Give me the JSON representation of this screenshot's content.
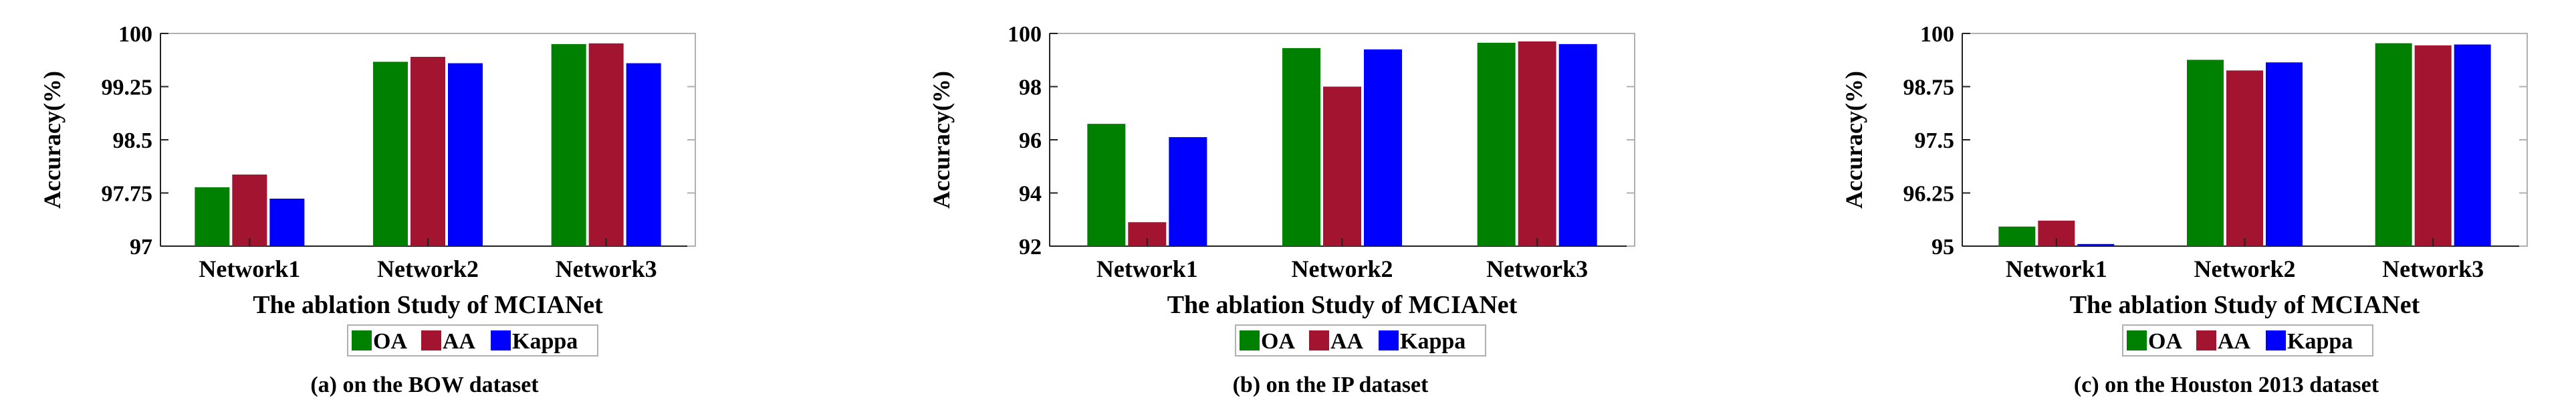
{
  "legend": {
    "entries": [
      {
        "name": "OA",
        "color": "#008000"
      },
      {
        "name": "AA",
        "color": "#A2142F"
      },
      {
        "name": "Kappa",
        "color": "#0000FF"
      }
    ],
    "placement": "bottom-center"
  },
  "chart_data": [
    {
      "type": "bar",
      "title": "",
      "caption": "(a) on the BOW dataset",
      "xlabel": "The ablation Study of MCIANet",
      "ylabel": "Accuracy(%)",
      "categories": [
        "Network1",
        "Network2",
        "Network3"
      ],
      "ylim": [
        97,
        100
      ],
      "yticks": [
        97,
        97.75,
        98.5,
        99.25,
        100
      ],
      "ytick_labels": [
        "97",
        "97.75",
        "98.5",
        "99.25",
        "100"
      ],
      "grid": false,
      "series": [
        {
          "name": "OA",
          "color": "#008000",
          "values": [
            97.83,
            99.6,
            99.85
          ]
        },
        {
          "name": "AA",
          "color": "#A2142F",
          "values": [
            98.01,
            99.67,
            99.86
          ]
        },
        {
          "name": "Kappa",
          "color": "#0000FF",
          "values": [
            97.67,
            99.58,
            99.58
          ]
        }
      ]
    },
    {
      "type": "bar",
      "title": "",
      "caption": "(b) on the IP dataset",
      "xlabel": "The ablation Study of MCIANet",
      "ylabel": "Accuracy(%)",
      "categories": [
        "Network1",
        "Network2",
        "Network3"
      ],
      "ylim": [
        92,
        100
      ],
      "yticks": [
        92,
        94,
        96,
        98,
        100
      ],
      "ytick_labels": [
        "92",
        "94",
        "96",
        "98",
        "100"
      ],
      "grid": false,
      "series": [
        {
          "name": "OA",
          "color": "#008000",
          "values": [
            96.6,
            99.45,
            99.65
          ]
        },
        {
          "name": "AA",
          "color": "#A2142F",
          "values": [
            92.9,
            98.0,
            99.7
          ]
        },
        {
          "name": "Kappa",
          "color": "#0000FF",
          "values": [
            96.1,
            99.4,
            99.6
          ]
        }
      ]
    },
    {
      "type": "bar",
      "title": "",
      "caption": "(c) on the Houston 2013 dataset",
      "xlabel": "The ablation Study of MCIANet",
      "ylabel": "Accuracy(%)",
      "categories": [
        "Network1",
        "Network2",
        "Network3"
      ],
      "ylim": [
        95,
        100
      ],
      "yticks": [
        95,
        96.25,
        97.5,
        98.75,
        100
      ],
      "ytick_labels": [
        "95",
        "96.25",
        "97.5",
        "98.75",
        "100"
      ],
      "grid": false,
      "series": [
        {
          "name": "OA",
          "color": "#008000",
          "values": [
            95.46,
            99.38,
            99.77
          ]
        },
        {
          "name": "AA",
          "color": "#A2142F",
          "values": [
            95.6,
            99.13,
            99.72
          ]
        },
        {
          "name": "Kappa",
          "color": "#0000FF",
          "values": [
            95.05,
            99.32,
            99.74
          ]
        }
      ]
    }
  ]
}
